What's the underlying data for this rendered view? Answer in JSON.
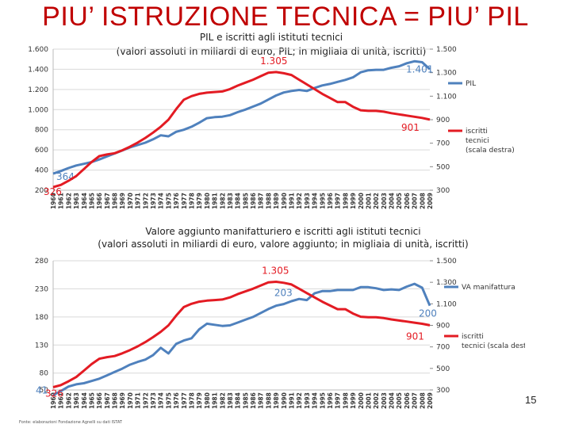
{
  "slide": {
    "title": "PIU’ ISTRUZIONE TECNICA = PIU’ PIL",
    "page_number": "15",
    "source_note": "Fonte: elaborazioni Fondazione Agnelli su dati ISTAT"
  },
  "colors": {
    "gdp": "#4f81bd",
    "enrolled": "#e31b23",
    "grid": "#d9d9d9"
  },
  "chart_data": [
    {
      "type": "line",
      "title": "PIL e iscritti agli istituti tecnici",
      "subtitle": "(valori assoluti in miliardi di euro, PIL; in migliaia di unità, iscritti)",
      "x": [
        1960,
        1961,
        1962,
        1963,
        1964,
        1965,
        1966,
        1967,
        1968,
        1969,
        1970,
        1971,
        1972,
        1973,
        1974,
        1975,
        1976,
        1977,
        1978,
        1979,
        1980,
        1981,
        1982,
        1983,
        1984,
        1985,
        1986,
        1987,
        1988,
        1989,
        1990,
        1991,
        1992,
        1993,
        1994,
        1995,
        1996,
        1997,
        1998,
        1999,
        2000,
        2001,
        2002,
        2003,
        2004,
        2005,
        2006,
        2007,
        2008,
        2009
      ],
      "x_tick_labels": [
        "1960",
        "1961",
        "1962",
        "1963",
        "1964",
        "1965",
        "1966",
        "1967",
        "1968",
        "1969",
        "1970",
        "1971",
        "1972",
        "1973",
        "1974",
        "1975",
        "1976",
        "1977",
        "1978",
        "1979",
        "1980",
        "1981",
        "1982",
        "1983",
        "1984",
        "1985",
        "1986",
        "1987",
        "1988",
        "1989",
        "1990",
        "1991",
        "1992",
        "1993",
        "1994",
        "1995",
        "1996",
        "1997",
        "1998",
        "1999",
        "2000",
        "2001",
        "2002",
        "2003",
        "2004",
        "2005",
        "2006",
        "2007",
        "2008",
        "2009"
      ],
      "ylim_left": [
        200,
        1600
      ],
      "yticks_left": [
        "1.600",
        "1.400",
        "1.200",
        "1.000",
        "800",
        "600",
        "400",
        "200"
      ],
      "ylim_right": [
        300,
        1500
      ],
      "yticks_right": [
        "1.500",
        "1.300",
        "1.100",
        "900",
        "700",
        "500",
        "300"
      ],
      "series": [
        {
          "name": "PIL",
          "axis": "left",
          "color": "#4f81bd",
          "values": [
            364,
            390,
            420,
            445,
            462,
            480,
            505,
            535,
            565,
            595,
            625,
            648,
            672,
            705,
            745,
            735,
            780,
            800,
            830,
            870,
            915,
            925,
            930,
            945,
            975,
            1000,
            1030,
            1060,
            1100,
            1140,
            1170,
            1185,
            1195,
            1185,
            1215,
            1240,
            1255,
            1275,
            1295,
            1320,
            1370,
            1390,
            1395,
            1395,
            1415,
            1430,
            1460,
            1480,
            1470,
            1401
          ],
          "labels": [
            {
              "index": 0,
              "text": "364"
            },
            {
              "index": 49,
              "text": "1.401"
            }
          ]
        },
        {
          "name": "iscritti tecnici (scala destra)",
          "axis": "right",
          "color": "#e31b23",
          "values": [
            326,
            345,
            380,
            420,
            480,
            540,
            590,
            605,
            615,
            640,
            670,
            705,
            745,
            790,
            840,
            900,
            990,
            1070,
            1100,
            1120,
            1130,
            1135,
            1140,
            1160,
            1190,
            1215,
            1240,
            1270,
            1300,
            1305,
            1295,
            1280,
            1240,
            1200,
            1160,
            1120,
            1085,
            1050,
            1050,
            1010,
            980,
            975,
            975,
            968,
            955,
            945,
            935,
            925,
            915,
            901
          ],
          "labels": [
            {
              "index": 29,
              "text": "1.305"
            },
            {
              "index": 0,
              "text": "326"
            },
            {
              "index": 49,
              "text": "901"
            }
          ]
        }
      ],
      "legend": [
        "PIL",
        "iscritti tecnici (scala destra)"
      ],
      "grid": true
    },
    {
      "type": "line",
      "title": "Valore aggiunto manifatturiero e iscritti agli istituti tecnici",
      "subtitle": "(valori assoluti in miliardi di euro, valore aggiunto; in migliaia di unità, iscritti)",
      "x": [
        1960,
        1961,
        1962,
        1963,
        1964,
        1965,
        1966,
        1967,
        1968,
        1969,
        1970,
        1971,
        1972,
        1973,
        1974,
        1975,
        1976,
        1977,
        1978,
        1979,
        1980,
        1981,
        1982,
        1983,
        1984,
        1985,
        1986,
        1987,
        1988,
        1989,
        1990,
        1991,
        1992,
        1993,
        1994,
        1995,
        1996,
        1997,
        1998,
        1999,
        2000,
        2001,
        2002,
        2003,
        2004,
        2005,
        2006,
        2007,
        2008,
        2009
      ],
      "x_tick_labels": [
        "1960",
        "1961",
        "1962",
        "1963",
        "1964",
        "1965",
        "1966",
        "1967",
        "1968",
        "1969",
        "1970",
        "1971",
        "1972",
        "1973",
        "1974",
        "1975",
        "1976",
        "1977",
        "1978",
        "1979",
        "1980",
        "1981",
        "1982",
        "1983",
        "1984",
        "1985",
        "1986",
        "1987",
        "1988",
        "1989",
        "1990",
        "1991",
        "1992",
        "1993",
        "1994",
        "1995",
        "1996",
        "1997",
        "1998",
        "1999",
        "2000",
        "2001",
        "2002",
        "2003",
        "2004",
        "2005",
        "2006",
        "2007",
        "2008",
        "2009"
      ],
      "ylim_left": [
        50,
        280
      ],
      "yticks_left": [
        "280",
        "230",
        "180",
        "130",
        "80",
        "50"
      ],
      "ylim_right": [
        300,
        1500
      ],
      "yticks_right": [
        "1.500",
        "1.300",
        "1.100",
        "900",
        "700",
        "500",
        "300"
      ],
      "series": [
        {
          "name": "VA manifattura",
          "axis": "left",
          "color": "#4f81bd",
          "values": [
            41,
            48,
            56,
            60,
            62,
            66,
            70,
            76,
            82,
            88,
            95,
            100,
            104,
            112,
            125,
            115,
            132,
            138,
            142,
            158,
            168,
            166,
            164,
            165,
            170,
            175,
            180,
            187,
            194,
            200,
            203,
            208,
            212,
            210,
            222,
            226,
            226,
            228,
            228,
            228,
            233,
            233,
            231,
            228,
            229,
            228,
            234,
            239,
            232,
            200
          ],
          "labels": [
            {
              "index": 30,
              "text": "203"
            },
            {
              "index": 0,
              "text": "41"
            },
            {
              "index": 49,
              "text": "200"
            }
          ]
        },
        {
          "name": "iscritti tecnici (scala destra)",
          "axis": "right",
          "color": "#e31b23",
          "values": [
            326,
            345,
            380,
            420,
            480,
            540,
            590,
            605,
            615,
            640,
            670,
            705,
            745,
            790,
            840,
            900,
            990,
            1070,
            1100,
            1120,
            1130,
            1135,
            1140,
            1160,
            1190,
            1215,
            1240,
            1270,
            1300,
            1305,
            1295,
            1280,
            1240,
            1200,
            1160,
            1120,
            1085,
            1050,
            1050,
            1010,
            980,
            975,
            975,
            968,
            955,
            945,
            935,
            925,
            915,
            901
          ],
          "labels": [
            {
              "index": 29,
              "text": "1.305"
            },
            {
              "index": 0,
              "text": "326"
            },
            {
              "index": 49,
              "text": "901"
            }
          ]
        }
      ],
      "legend": [
        "VA manifattura",
        "iscritti tecnici (scala destra)"
      ],
      "grid": true
    }
  ]
}
